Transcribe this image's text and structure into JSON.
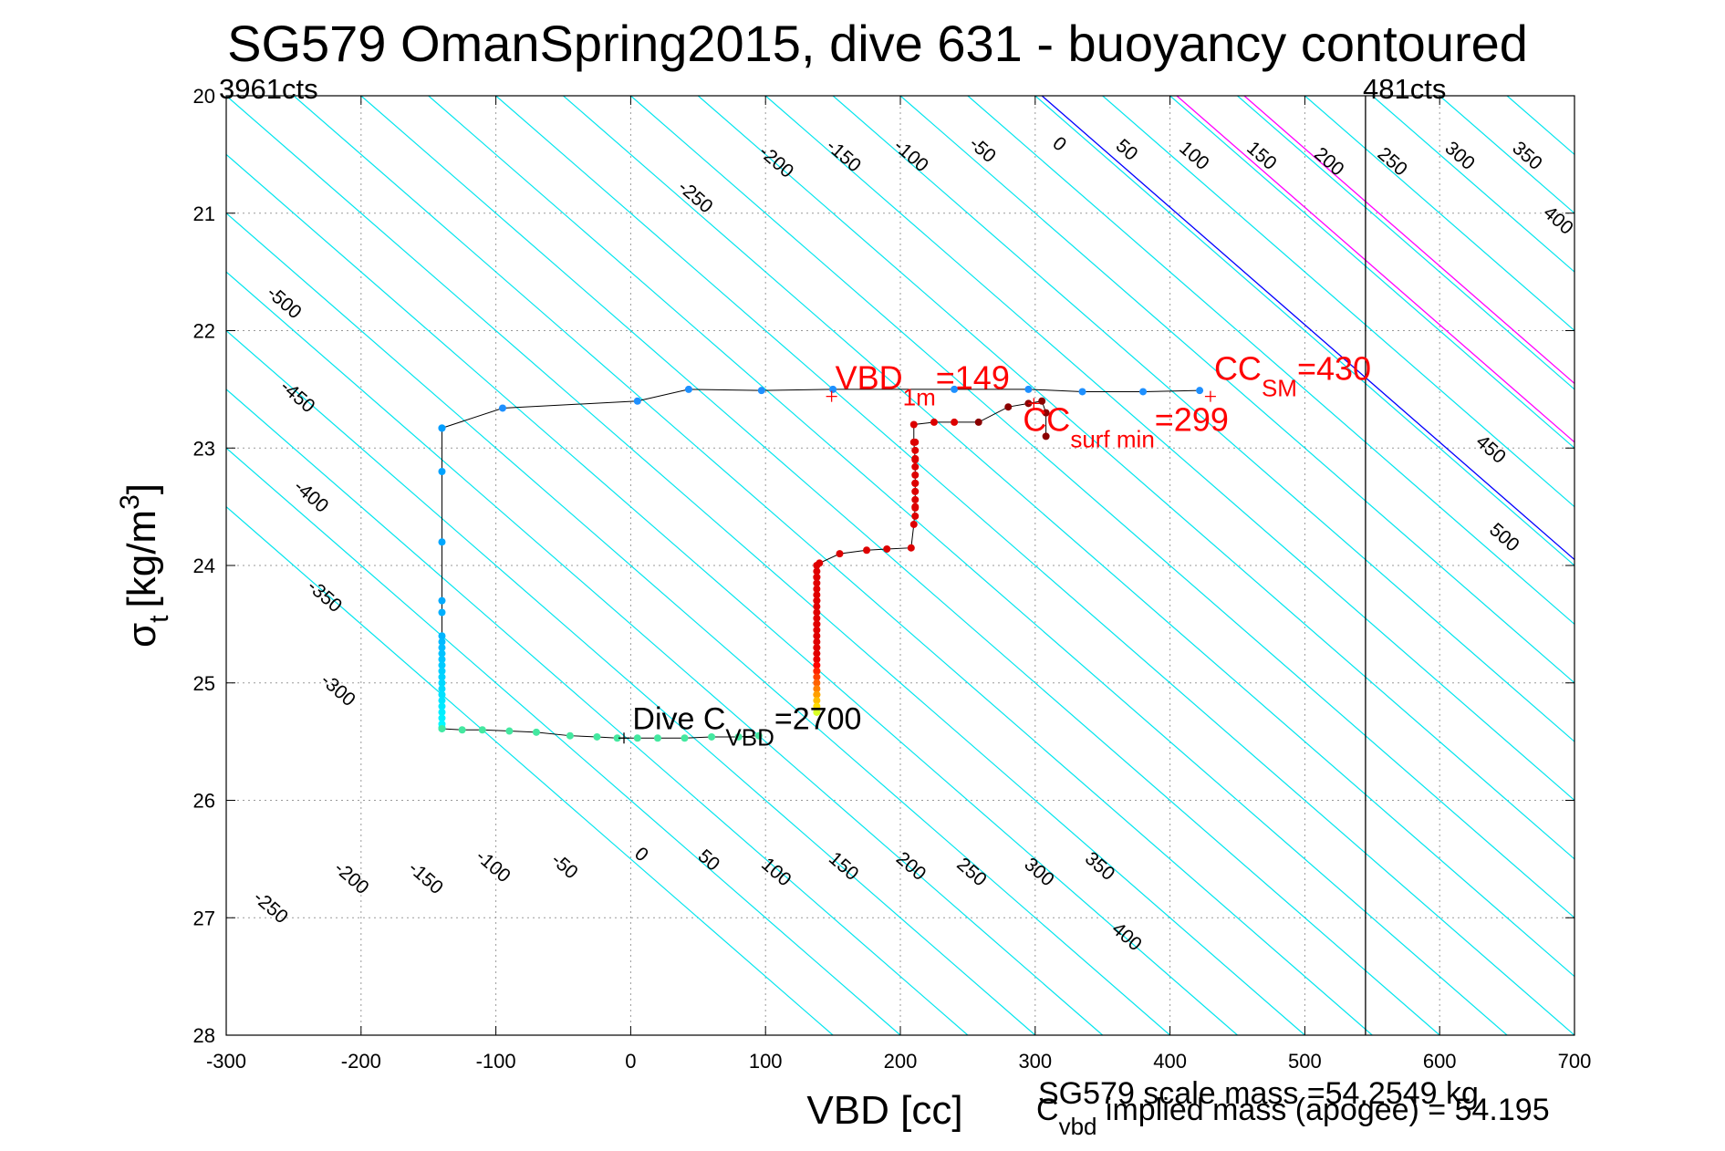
{
  "chart_data": {
    "type": "scatter",
    "title": "SG579 OmanSpring2015, dive 631 - buoyancy contoured",
    "xlabel": "VBD [cc]",
    "ylabel_main": "σ",
    "ylabel_sub": "t",
    "ylabel_units": "[kg/m",
    "ylabel_sup": "3",
    "ylabel_close": "]",
    "xlim": [
      -300,
      700
    ],
    "ylim": [
      20,
      28
    ],
    "y_reversed": true,
    "grid": true,
    "x_ticks": [
      -300,
      -200,
      -100,
      0,
      100,
      200,
      300,
      400,
      500,
      600,
      700
    ],
    "y_ticks": [
      20,
      21,
      22,
      23,
      24,
      25,
      26,
      27,
      28
    ],
    "corner_labels": {
      "left": "3961cts",
      "right": "481cts"
    },
    "vertical_line_x": 545,
    "contours": {
      "slope_cc_per_sigma": 100,
      "line_x_at_sigma_20": [
        -650,
        -600,
        -550,
        -500,
        -450,
        -400,
        -350,
        -300,
        -250,
        -200,
        -150,
        -100,
        -50,
        0,
        50,
        100,
        150,
        200,
        250,
        300,
        350,
        400,
        450,
        500,
        550,
        600,
        650,
        700
      ],
      "zero_line_x_at_sigma_20": 305,
      "magenta_offsets": [
        100,
        150
      ],
      "colors": {
        "contour": "#00e5ee",
        "zero": "#0000ff",
        "special": "#ff00ff"
      },
      "upper_labels": [
        {
          "text": "-500",
          "x": -260,
          "y": 21.8
        },
        {
          "text": "-450",
          "x": -250,
          "y": 22.6
        },
        {
          "text": "-400",
          "x": -240,
          "y": 23.45
        },
        {
          "text": "-350",
          "x": -230,
          "y": 24.3
        },
        {
          "text": "-300",
          "x": -220,
          "y": 25.1
        },
        {
          "text": "-250",
          "x": 45,
          "y": 20.9
        },
        {
          "text": "-200",
          "x": 105,
          "y": 20.6
        },
        {
          "text": "-150",
          "x": 155,
          "y": 20.55
        },
        {
          "text": "-100",
          "x": 205,
          "y": 20.55
        },
        {
          "text": "-50",
          "x": 258,
          "y": 20.5
        },
        {
          "text": "0",
          "x": 315,
          "y": 20.45
        },
        {
          "text": "50",
          "x": 365,
          "y": 20.5
        },
        {
          "text": "100",
          "x": 415,
          "y": 20.55
        },
        {
          "text": "150",
          "x": 465,
          "y": 20.55
        },
        {
          "text": "200",
          "x": 515,
          "y": 20.6
        },
        {
          "text": "250",
          "x": 562,
          "y": 20.6
        },
        {
          "text": "300",
          "x": 612,
          "y": 20.55
        },
        {
          "text": "350",
          "x": 662,
          "y": 20.55
        },
        {
          "text": "400",
          "x": 685,
          "y": 21.1
        },
        {
          "text": "450",
          "x": 635,
          "y": 23.05
        },
        {
          "text": "500",
          "x": 645,
          "y": 23.8
        }
      ],
      "lower_labels": [
        {
          "text": "-250",
          "x": -270,
          "y": 26.95
        },
        {
          "text": "-200",
          "x": -210,
          "y": 26.7
        },
        {
          "text": "-150",
          "x": -155,
          "y": 26.7
        },
        {
          "text": "-100",
          "x": -105,
          "y": 26.6
        },
        {
          "text": "-50",
          "x": -52,
          "y": 26.6
        },
        {
          "text": "0",
          "x": 5,
          "y": 26.5
        },
        {
          "text": "50",
          "x": 55,
          "y": 26.55
        },
        {
          "text": "100",
          "x": 105,
          "y": 26.65
        },
        {
          "text": "150",
          "x": 155,
          "y": 26.6
        },
        {
          "text": "200",
          "x": 205,
          "y": 26.6
        },
        {
          "text": "250",
          "x": 250,
          "y": 26.65
        },
        {
          "text": "300",
          "x": 300,
          "y": 26.65
        },
        {
          "text": "350",
          "x": 345,
          "y": 26.6
        },
        {
          "text": "400",
          "x": 365,
          "y": 27.2
        }
      ]
    },
    "series": [
      {
        "name_hidden": "trajectory",
        "x": [
          -140,
          -140,
          -140,
          -140,
          -140,
          -140,
          -140,
          -140,
          -140,
          -140,
          -140,
          -140,
          -140,
          -140,
          -140,
          -140,
          -140,
          -140,
          -140,
          -140,
          -140,
          -140,
          -140
        ],
        "y": [
          22.83,
          23.2,
          23.8,
          24.3,
          24.4,
          24.6,
          24.65,
          24.7,
          24.75,
          24.8,
          24.85,
          24.9,
          24.95,
          25.0,
          25.05,
          25.1,
          25.15,
          25.2,
          25.25,
          25.3,
          25.35,
          25.38,
          25.39
        ]
      }
    ],
    "ascent_path": {
      "points": [
        [
          -140,
          25.39
        ],
        [
          -125,
          25.4
        ],
        [
          -110,
          25.4
        ],
        [
          -90,
          25.41
        ],
        [
          -70,
          25.42
        ],
        [
          -45,
          25.45
        ],
        [
          -25,
          25.46
        ],
        [
          -10,
          25.47
        ],
        [
          5,
          25.47
        ],
        [
          20,
          25.47
        ],
        [
          40,
          25.47
        ],
        [
          60,
          25.46
        ],
        [
          80,
          25.46
        ],
        [
          95,
          25.45
        ]
      ],
      "upper_points": [
        [
          -140,
          22.83
        ],
        [
          -95,
          22.66
        ],
        [
          5,
          22.6
        ],
        [
          43,
          22.5
        ],
        [
          97,
          22.51
        ],
        [
          150,
          22.5
        ],
        [
          240,
          22.5
        ],
        [
          295,
          22.5
        ],
        [
          335,
          22.52
        ],
        [
          380,
          22.52
        ],
        [
          422,
          22.51
        ]
      ]
    },
    "descent_path": {
      "points": [
        [
          308,
          22.9
        ],
        [
          308,
          22.7
        ],
        [
          305,
          22.6
        ],
        [
          295,
          22.62
        ],
        [
          280,
          22.65
        ],
        [
          258,
          22.78
        ],
        [
          240,
          22.78
        ],
        [
          225,
          22.78
        ],
        [
          210,
          22.8
        ],
        [
          210,
          22.95
        ],
        [
          211,
          23.1
        ],
        [
          211,
          23.3
        ],
        [
          211,
          23.5
        ],
        [
          210,
          23.65
        ],
        [
          208,
          23.85
        ],
        [
          190,
          23.86
        ],
        [
          175,
          23.87
        ],
        [
          155,
          23.9
        ],
        [
          140,
          23.98
        ],
        [
          138,
          24.1
        ],
        [
          138,
          24.3
        ],
        [
          138,
          24.5
        ],
        [
          138,
          24.7
        ],
        [
          138,
          24.9
        ],
        [
          138,
          25.1
        ],
        [
          138,
          25.25
        ]
      ]
    },
    "annotations": [
      {
        "id": "vbd1m",
        "text_main": "VBD",
        "text_sub": "1m",
        "text_tail": "=149",
        "marker_x": 149,
        "marker_y": 22.56,
        "color": "#ff0000"
      },
      {
        "id": "ccsm",
        "text_main": "CC",
        "text_sub": "SM",
        "text_tail": "=430",
        "marker_x": 430,
        "marker_y": 22.56,
        "color": "#ff0000"
      },
      {
        "id": "ccsurf",
        "text_main": "CC",
        "text_sub": "surf min",
        "text_tail": "=299",
        "marker_x": 299,
        "marker_y": 22.62,
        "color": "#ff0000"
      },
      {
        "id": "divecvbd",
        "text_main": "Dive C",
        "text_sub": "VBD",
        "text_tail": "=2700",
        "marker_x": -5,
        "marker_y": 25.47,
        "color": "#000000"
      }
    ],
    "footer": {
      "scale_mass": "SG579 scale mass =54.2549 kg",
      "implied_main": "C",
      "implied_sub": "vbd",
      "implied_tail": " implied mass (apogee) = 54.195"
    }
  }
}
